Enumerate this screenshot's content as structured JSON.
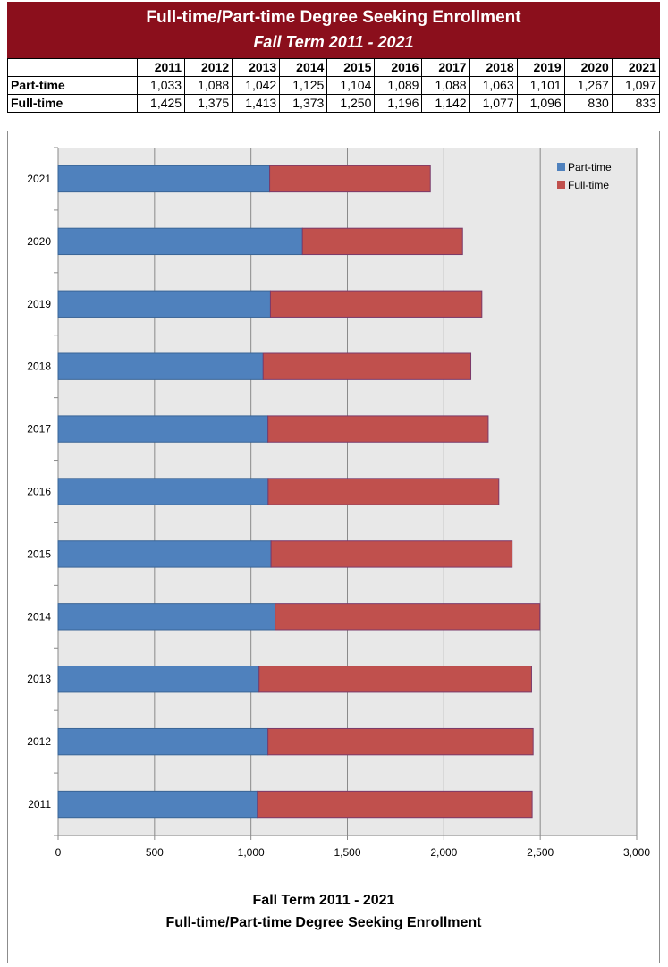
{
  "header": {
    "title": "Full-time/Part-time Degree Seeking Enrollment",
    "subtitle": "Fall Term 2011 - 2021"
  },
  "table": {
    "years": [
      "2011",
      "2012",
      "2013",
      "2014",
      "2015",
      "2016",
      "2017",
      "2018",
      "2019",
      "2020",
      "2021"
    ],
    "rows": [
      {
        "label": "Part-time",
        "values": [
          "1,033",
          "1,088",
          "1,042",
          "1,125",
          "1,104",
          "1,089",
          "1,088",
          "1,063",
          "1,101",
          "1,267",
          "1,097"
        ]
      },
      {
        "label": "Full-time",
        "values": [
          "1,425",
          "1,375",
          "1,413",
          "1,373",
          "1,250",
          "1,196",
          "1,142",
          "1,077",
          "1,096",
          "830",
          "833"
        ]
      }
    ]
  },
  "chart_data": {
    "type": "bar",
    "orientation": "horizontal",
    "stacked": true,
    "categories": [
      "2011",
      "2012",
      "2013",
      "2014",
      "2015",
      "2016",
      "2017",
      "2018",
      "2019",
      "2020",
      "2021"
    ],
    "series": [
      {
        "name": "Part-time",
        "color": "#4f81bd",
        "values": [
          1033,
          1088,
          1042,
          1125,
          1104,
          1089,
          1088,
          1063,
          1101,
          1267,
          1097
        ]
      },
      {
        "name": "Full-time",
        "color": "#c0504d",
        "values": [
          1425,
          1375,
          1413,
          1373,
          1250,
          1196,
          1142,
          1077,
          1096,
          830,
          833
        ]
      }
    ],
    "xlim": [
      0,
      3000
    ],
    "xticks": [
      0,
      500,
      1000,
      1500,
      2000,
      2500,
      3000
    ],
    "xtick_labels": [
      "0",
      "500",
      "1,000",
      "1,500",
      "2,000",
      "2,500",
      "3,000"
    ],
    "title_line1": "Fall Term 2011 - 2021",
    "title_line2": "Full-time/Part-time Degree Seeking Enrollment",
    "legend_position": "top-right",
    "plot_background": "#e8e8e8",
    "grid": true
  }
}
